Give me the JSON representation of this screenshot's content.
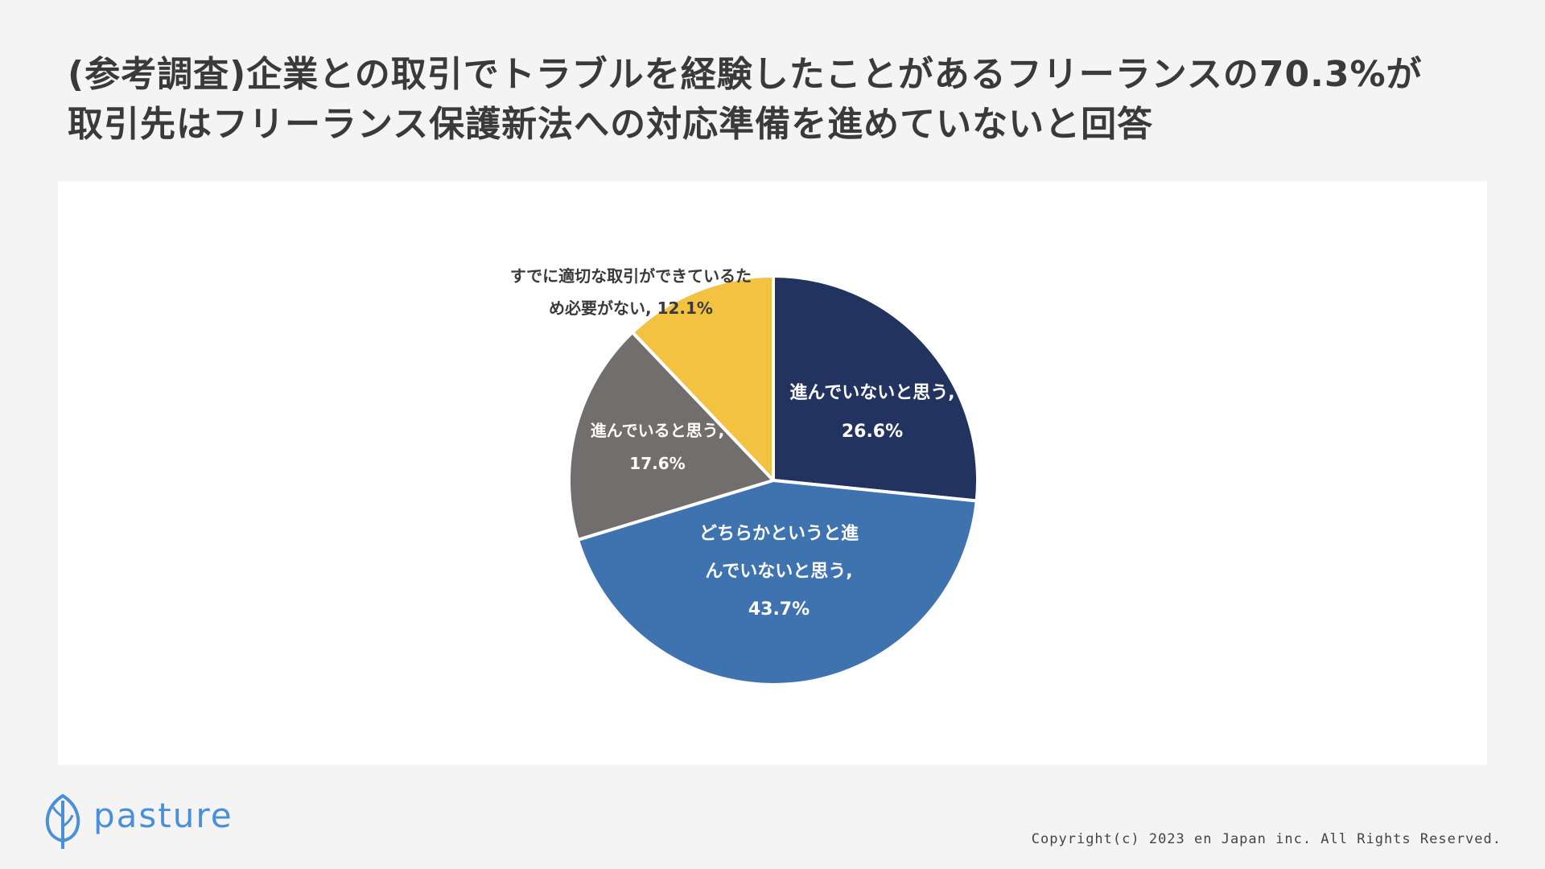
{
  "title": {
    "line1": "(参考調査)企業との取引でトラブルを経験したことがあるフリーランスの70.3%が",
    "line2": "取引先はフリーランス保護新法への対応準備を進めていないと回答"
  },
  "chart_data": {
    "type": "pie",
    "slices": [
      {
        "label_lines": [
          "進んでいないと思う,",
          "26.6%"
        ],
        "value": 26.6,
        "color": "#22335f",
        "label_color": "#ffffff"
      },
      {
        "label_lines": [
          "どちらかというと進",
          "んでいないと思う,",
          "43.7%"
        ],
        "value": 43.7,
        "color": "#3f73b0",
        "label_color": "#ffffff"
      },
      {
        "label_lines": [
          "進んでいると思う,",
          "17.6%"
        ],
        "value": 17.6,
        "color": "#726e6d",
        "label_color": "#ffffff"
      },
      {
        "label_lines": [
          "すでに適切な取引ができているた",
          "め必要がない, 12.1%"
        ],
        "value": 12.1,
        "color": "#f4c241",
        "label_color": "#3a3a3a"
      }
    ]
  },
  "footer": {
    "logo_text": "pasture",
    "copyright": "Copyright(c) 2023 en Japan inc. All Rights Reserved."
  },
  "colors": {
    "background": "#f4f4f4",
    "card": "#ffffff",
    "title": "#3a3a3a",
    "logo": "#4a90d9"
  }
}
